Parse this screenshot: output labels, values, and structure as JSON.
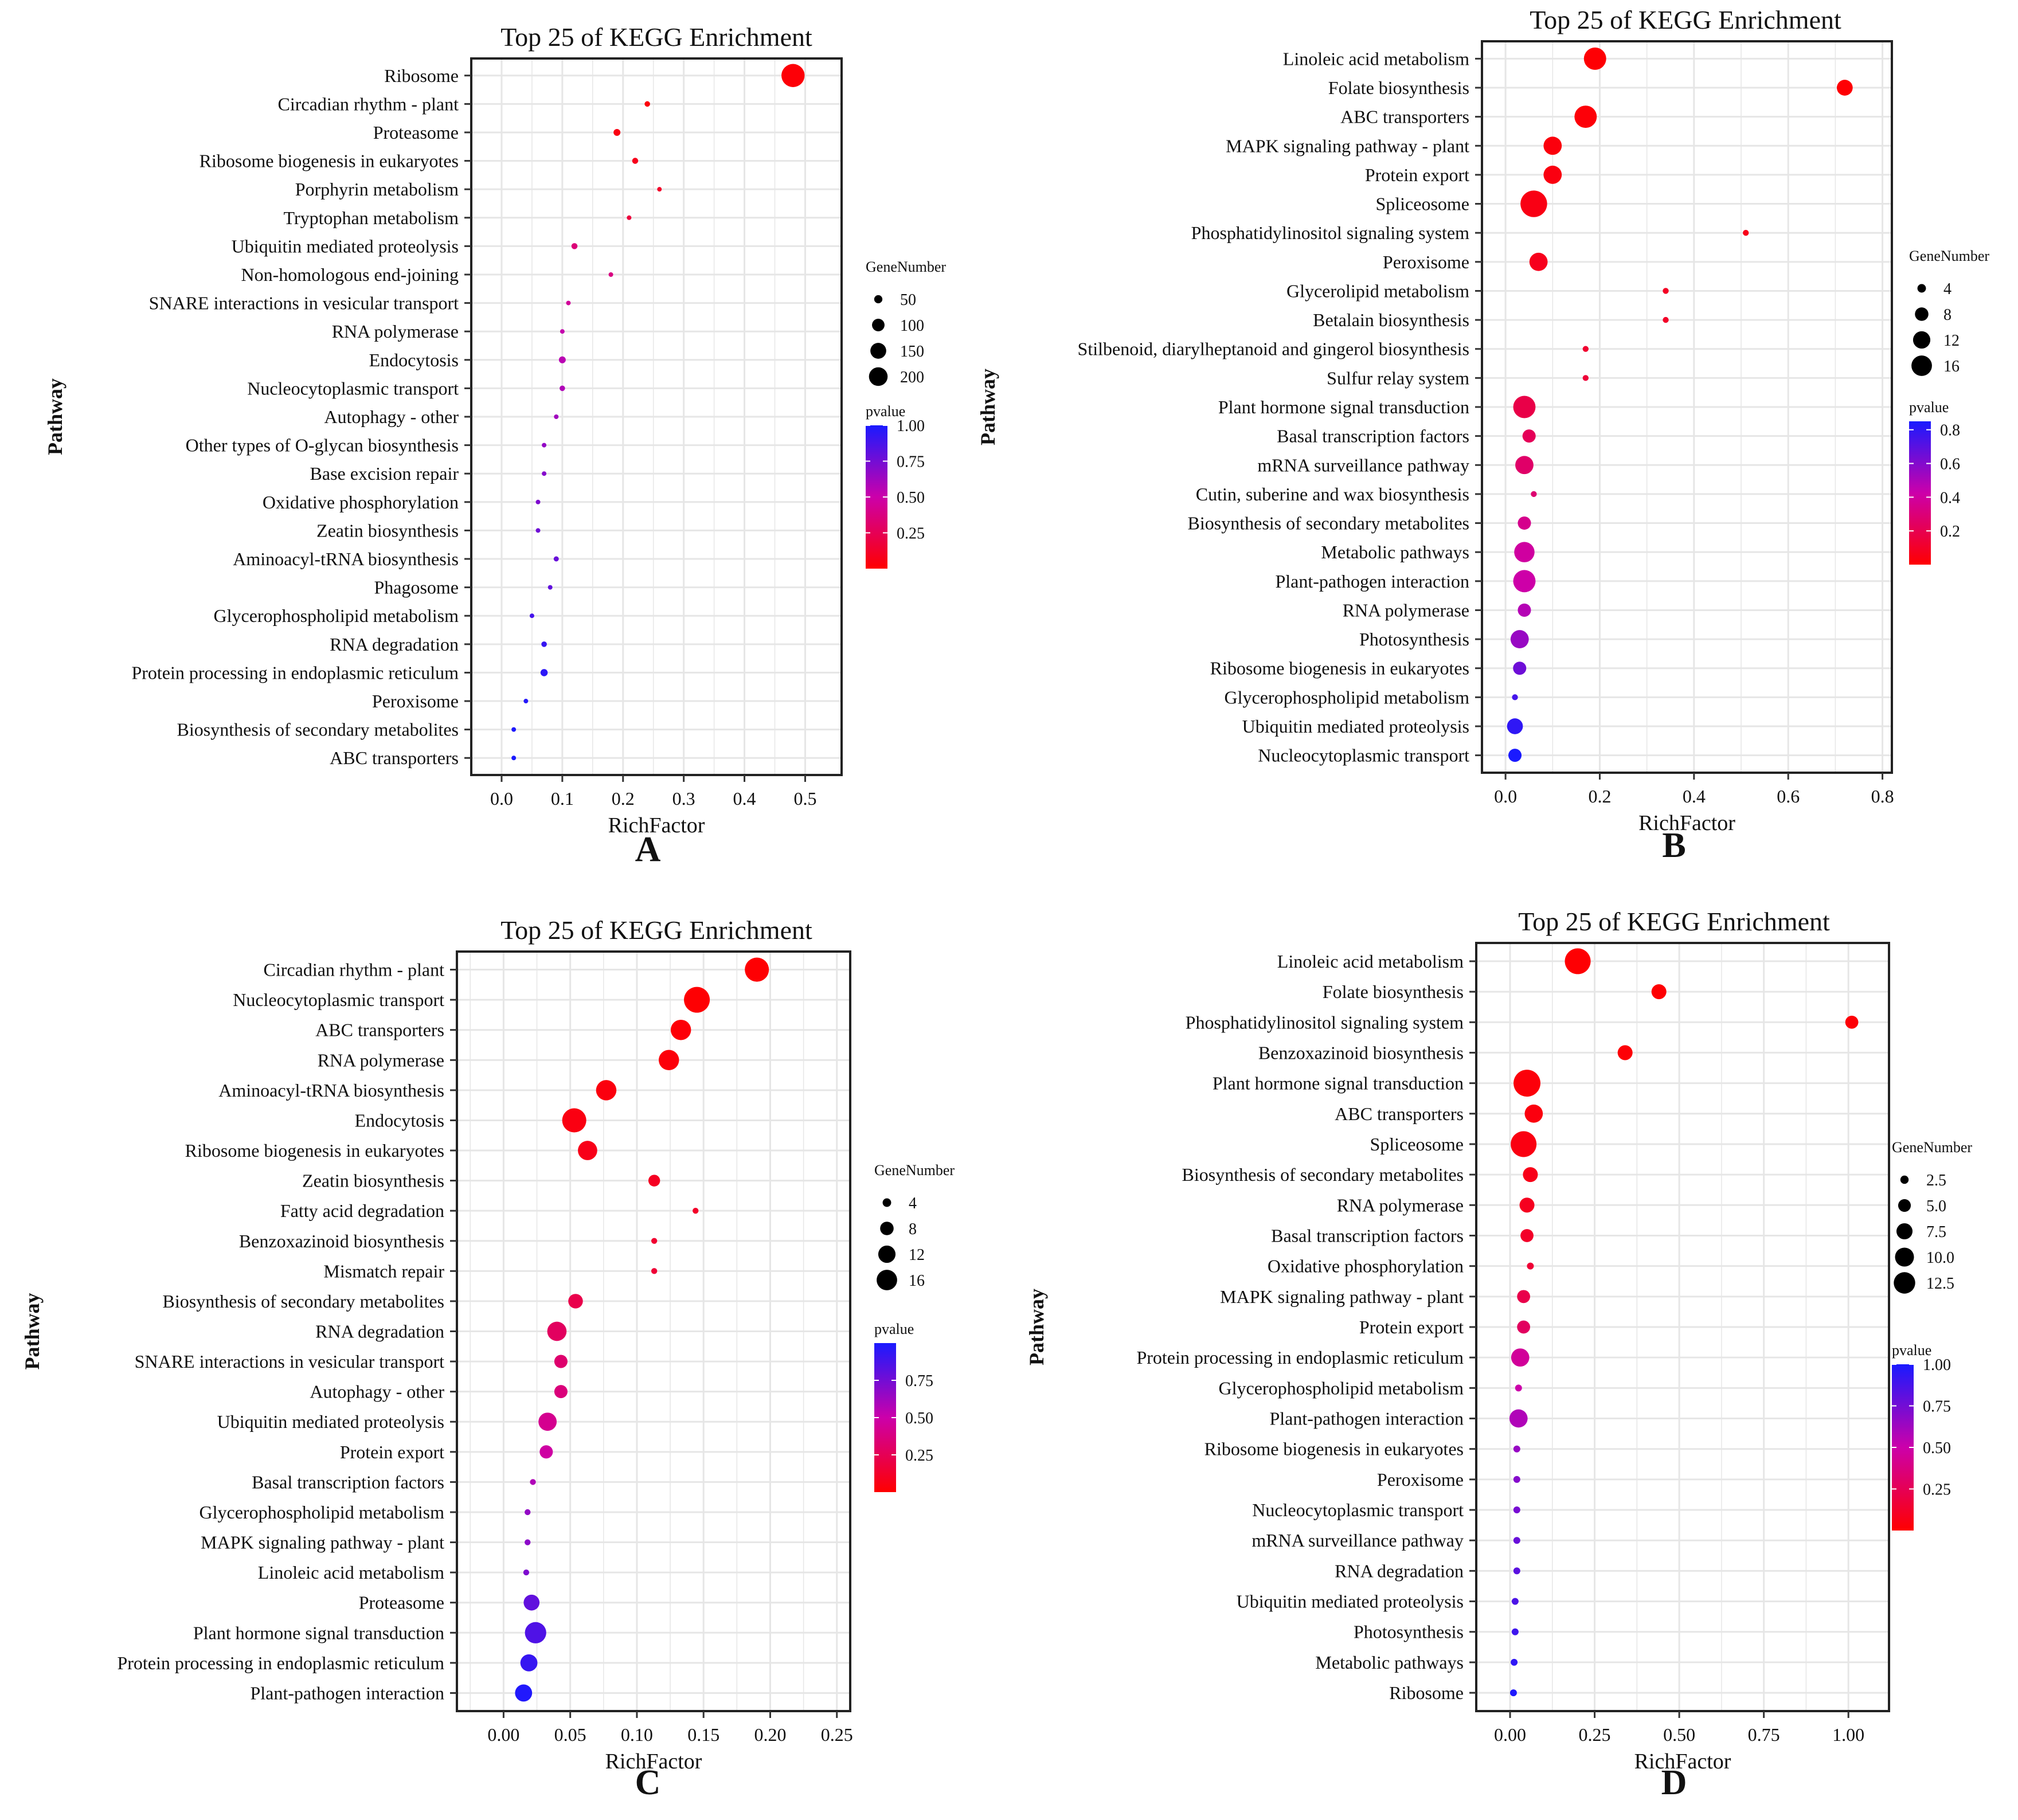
{
  "figure": {
    "panel_labels": [
      "A",
      "B",
      "C",
      "D"
    ]
  },
  "chart_data": [
    {
      "type": "scatter",
      "panel": "A",
      "title": "Top 25 of KEGG Enrichment",
      "xlabel": "RichFactor",
      "ylabel": "Pathway",
      "xlim": [
        -0.05,
        0.56
      ],
      "xticks": [
        0.0,
        0.1,
        0.2,
        0.3,
        0.4,
        0.5
      ],
      "xtick_labels": [
        "0.0",
        "0.1",
        "0.2",
        "0.3",
        "0.4",
        "0.5"
      ],
      "grid": true,
      "size_legend": {
        "title": "GeneNumber",
        "values": [
          50,
          100,
          150,
          200
        ],
        "labels": [
          "50",
          "100",
          "150",
          "200"
        ]
      },
      "color_legend": {
        "title": "pvalue",
        "range": [
          0.0,
          1.0
        ],
        "ticks": [
          0.25,
          0.5,
          0.75,
          1.0
        ],
        "labels": [
          "0.25",
          "0.50",
          "0.75",
          "1.00"
        ]
      },
      "points": [
        {
          "pathway": "Ribosome",
          "rich": 0.48,
          "genes": 220,
          "p": 0.02
        },
        {
          "pathway": "Circadian rhythm - plant",
          "rich": 0.24,
          "genes": 22,
          "p": 0.03
        },
        {
          "pathway": "Proteasome",
          "rich": 0.19,
          "genes": 30,
          "p": 0.05
        },
        {
          "pathway": "Ribosome biogenesis in eukaryotes",
          "rich": 0.22,
          "genes": 25,
          "p": 0.08
        },
        {
          "pathway": "Porphyrin metabolism",
          "rich": 0.26,
          "genes": 5,
          "p": 0.12
        },
        {
          "pathway": "Tryptophan metabolism",
          "rich": 0.21,
          "genes": 5,
          "p": 0.18
        },
        {
          "pathway": "Ubiquitin mediated proteolysis",
          "rich": 0.12,
          "genes": 25,
          "p": 0.35
        },
        {
          "pathway": "Non-homologous end-joining",
          "rich": 0.18,
          "genes": 5,
          "p": 0.38
        },
        {
          "pathway": "SNARE interactions in vesicular transport",
          "rich": 0.11,
          "genes": 10,
          "p": 0.45
        },
        {
          "pathway": "RNA polymerase",
          "rich": 0.1,
          "genes": 12,
          "p": 0.52
        },
        {
          "pathway": "Endocytosis",
          "rich": 0.1,
          "genes": 30,
          "p": 0.55
        },
        {
          "pathway": "Nucleocytoplasmic transport",
          "rich": 0.1,
          "genes": 22,
          "p": 0.58
        },
        {
          "pathway": "Autophagy - other",
          "rich": 0.09,
          "genes": 12,
          "p": 0.62
        },
        {
          "pathway": "Other types of O-glycan biosynthesis",
          "rich": 0.07,
          "genes": 5,
          "p": 0.66
        },
        {
          "pathway": "Base excision repair",
          "rich": 0.07,
          "genes": 6,
          "p": 0.7
        },
        {
          "pathway": "Oxidative phosphorylation",
          "rich": 0.06,
          "genes": 6,
          "p": 0.72
        },
        {
          "pathway": "Zeatin biosynthesis",
          "rich": 0.06,
          "genes": 5,
          "p": 0.76
        },
        {
          "pathway": "Aminoacyl-tRNA biosynthesis",
          "rich": 0.09,
          "genes": 20,
          "p": 0.78
        },
        {
          "pathway": "Phagosome",
          "rich": 0.08,
          "genes": 12,
          "p": 0.8
        },
        {
          "pathway": "Glycerophospholipid metabolism",
          "rich": 0.05,
          "genes": 12,
          "p": 0.88
        },
        {
          "pathway": "RNA degradation",
          "rich": 0.07,
          "genes": 22,
          "p": 0.92
        },
        {
          "pathway": "Protein processing in endoplasmic reticulum",
          "rich": 0.07,
          "genes": 32,
          "p": 0.95
        },
        {
          "pathway": "Peroxisome",
          "rich": 0.04,
          "genes": 12,
          "p": 0.97
        },
        {
          "pathway": "Biosynthesis of secondary metabolites",
          "rich": 0.02,
          "genes": 5,
          "p": 0.99
        },
        {
          "pathway": "ABC transporters",
          "rich": 0.02,
          "genes": 5,
          "p": 1.0
        }
      ]
    },
    {
      "type": "scatter",
      "panel": "B",
      "title": "Top 25 of KEGG Enrichment",
      "xlabel": "RichFactor",
      "ylabel": "Pathway",
      "xlim": [
        -0.05,
        0.82
      ],
      "xticks": [
        0.0,
        0.2,
        0.4,
        0.6,
        0.8
      ],
      "xtick_labels": [
        "0.0",
        "0.2",
        "0.4",
        "0.6",
        "0.8"
      ],
      "grid": true,
      "size_legend": {
        "title": "GeneNumber",
        "values": [
          4,
          8,
          12,
          16
        ],
        "labels": [
          "4",
          "8",
          "12",
          "16"
        ]
      },
      "color_legend": {
        "title": "pvalue",
        "range": [
          0.0,
          0.85
        ],
        "ticks": [
          0.2,
          0.4,
          0.6,
          0.8
        ],
        "labels": [
          "0.2",
          "0.4",
          "0.6",
          "0.8"
        ]
      },
      "points": [
        {
          "pathway": "Linoleic acid metabolism",
          "rich": 0.19,
          "genes": 14,
          "p": 0.01
        },
        {
          "pathway": "Folate biosynthesis",
          "rich": 0.72,
          "genes": 8,
          "p": 0.01
        },
        {
          "pathway": "ABC transporters",
          "rich": 0.17,
          "genes": 14,
          "p": 0.02
        },
        {
          "pathway": "MAPK signaling pathway - plant",
          "rich": 0.1,
          "genes": 10,
          "p": 0.03
        },
        {
          "pathway": "Protein export",
          "rich": 0.1,
          "genes": 10,
          "p": 0.04
        },
        {
          "pathway": "Spliceosome",
          "rich": 0.06,
          "genes": 19,
          "p": 0.05
        },
        {
          "pathway": "Phosphatidylinositol signaling system",
          "rich": 0.51,
          "genes": 2,
          "p": 0.06
        },
        {
          "pathway": "Peroxisome",
          "rich": 0.07,
          "genes": 10,
          "p": 0.07
        },
        {
          "pathway": "Glycerolipid metabolism",
          "rich": 0.34,
          "genes": 2,
          "p": 0.09
        },
        {
          "pathway": "Betalain biosynthesis",
          "rich": 0.34,
          "genes": 2,
          "p": 0.1
        },
        {
          "pathway": "Stilbenoid, diarylheptanoid and gingerol biosynthesis",
          "rich": 0.17,
          "genes": 2,
          "p": 0.12
        },
        {
          "pathway": "Sulfur relay system",
          "rich": 0.17,
          "genes": 2,
          "p": 0.14
        },
        {
          "pathway": "Plant hormone signal transduction",
          "rich": 0.04,
          "genes": 14,
          "p": 0.18
        },
        {
          "pathway": "Basal transcription factors",
          "rich": 0.05,
          "genes": 6,
          "p": 0.22
        },
        {
          "pathway": "mRNA surveillance pathway",
          "rich": 0.04,
          "genes": 10,
          "p": 0.26
        },
        {
          "pathway": "Cutin, suberine and wax biosynthesis",
          "rich": 0.06,
          "genes": 2,
          "p": 0.28
        },
        {
          "pathway": "Biosynthesis of secondary metabolites",
          "rich": 0.04,
          "genes": 6,
          "p": 0.35
        },
        {
          "pathway": "Metabolic pathways",
          "rich": 0.04,
          "genes": 12,
          "p": 0.4
        },
        {
          "pathway": "Plant-pathogen interaction",
          "rich": 0.04,
          "genes": 14,
          "p": 0.42
        },
        {
          "pathway": "RNA polymerase",
          "rich": 0.04,
          "genes": 6,
          "p": 0.48
        },
        {
          "pathway": "Photosynthesis",
          "rich": 0.03,
          "genes": 10,
          "p": 0.55
        },
        {
          "pathway": "Ribosome biogenesis in eukaryotes",
          "rich": 0.03,
          "genes": 6,
          "p": 0.65
        },
        {
          "pathway": "Glycerophospholipid metabolism",
          "rich": 0.02,
          "genes": 2,
          "p": 0.75
        },
        {
          "pathway": "Ubiquitin mediated proteolysis",
          "rich": 0.02,
          "genes": 8,
          "p": 0.8
        },
        {
          "pathway": "Nucleocytoplasmic transport",
          "rich": 0.02,
          "genes": 6,
          "p": 0.85
        }
      ]
    },
    {
      "type": "scatter",
      "panel": "C",
      "title": "Top 25 of KEGG Enrichment",
      "xlabel": "RichFactor",
      "ylabel": "Pathway",
      "xlim": [
        -0.035,
        0.26
      ],
      "xticks": [
        0.0,
        0.05,
        0.1,
        0.15,
        0.2,
        0.25
      ],
      "xtick_labels": [
        "0.00",
        "0.05",
        "0.10",
        "0.15",
        "0.20",
        "0.25"
      ],
      "grid": true,
      "size_legend": {
        "title": "GeneNumber",
        "values": [
          4,
          8,
          12,
          16
        ],
        "labels": [
          "4",
          "8",
          "12",
          "16"
        ]
      },
      "color_legend": {
        "title": "pvalue",
        "range": [
          0.0,
          1.0
        ],
        "ticks": [
          0.25,
          0.5,
          0.75
        ],
        "labels": [
          "0.25",
          "0.50",
          "0.75"
        ]
      },
      "points": [
        {
          "pathway": "Circadian rhythm - plant",
          "rich": 0.19,
          "genes": 16,
          "p": 0.01
        },
        {
          "pathway": "Nucleocytoplasmic transport",
          "rich": 0.145,
          "genes": 18,
          "p": 0.01
        },
        {
          "pathway": "ABC transporters",
          "rich": 0.133,
          "genes": 12,
          "p": 0.02
        },
        {
          "pathway": "RNA polymerase",
          "rich": 0.124,
          "genes": 12,
          "p": 0.03
        },
        {
          "pathway": "Aminoacyl-tRNA biosynthesis",
          "rich": 0.077,
          "genes": 12,
          "p": 0.04
        },
        {
          "pathway": "Endocytosis",
          "rich": 0.053,
          "genes": 16,
          "p": 0.05
        },
        {
          "pathway": "Ribosome biogenesis in eukaryotes",
          "rich": 0.063,
          "genes": 11,
          "p": 0.07
        },
        {
          "pathway": "Zeatin biosynthesis",
          "rich": 0.113,
          "genes": 5,
          "p": 0.1
        },
        {
          "pathway": "Fatty acid degradation",
          "rich": 0.144,
          "genes": 2,
          "p": 0.12
        },
        {
          "pathway": "Benzoxazinoid biosynthesis",
          "rich": 0.113,
          "genes": 2,
          "p": 0.14
        },
        {
          "pathway": "Mismatch repair",
          "rich": 0.113,
          "genes": 2,
          "p": 0.16
        },
        {
          "pathway": "Biosynthesis of secondary metabolites",
          "rich": 0.054,
          "genes": 7,
          "p": 0.22
        },
        {
          "pathway": "RNA degradation",
          "rich": 0.04,
          "genes": 11,
          "p": 0.28
        },
        {
          "pathway": "SNARE interactions in vesicular transport",
          "rich": 0.043,
          "genes": 6,
          "p": 0.32
        },
        {
          "pathway": "Autophagy - other",
          "rich": 0.043,
          "genes": 6,
          "p": 0.36
        },
        {
          "pathway": "Ubiquitin mediated proteolysis",
          "rich": 0.033,
          "genes": 10,
          "p": 0.42
        },
        {
          "pathway": "Protein export",
          "rich": 0.032,
          "genes": 6,
          "p": 0.48
        },
        {
          "pathway": "Basal transcription factors",
          "rich": 0.022,
          "genes": 2,
          "p": 0.58
        },
        {
          "pathway": "Glycerophospholipid metabolism",
          "rich": 0.018,
          "genes": 2,
          "p": 0.66
        },
        {
          "pathway": "MAPK signaling pathway - plant",
          "rich": 0.018,
          "genes": 2,
          "p": 0.68
        },
        {
          "pathway": "Linoleic acid metabolism",
          "rich": 0.017,
          "genes": 2,
          "p": 0.72
        },
        {
          "pathway": "Proteasome",
          "rich": 0.021,
          "genes": 8,
          "p": 0.8
        },
        {
          "pathway": "Plant hormone signal transduction",
          "rich": 0.024,
          "genes": 13,
          "p": 0.85
        },
        {
          "pathway": "Protein processing in endoplasmic reticulum",
          "rich": 0.019,
          "genes": 9,
          "p": 0.92
        },
        {
          "pathway": "Plant-pathogen interaction",
          "rich": 0.015,
          "genes": 9,
          "p": 0.98
        }
      ]
    },
    {
      "type": "scatter",
      "panel": "D",
      "title": "Top 25 of KEGG Enrichment",
      "xlabel": "RichFactor",
      "ylabel": "Pathway",
      "xlim": [
        -0.1,
        1.12
      ],
      "xticks": [
        0.0,
        0.25,
        0.5,
        0.75,
        1.0
      ],
      "xtick_labels": [
        "0.00",
        "0.25",
        "0.50",
        "0.75",
        "1.00"
      ],
      "grid": true,
      "size_legend": {
        "title": "GeneNumber",
        "values": [
          2.5,
          5.0,
          7.5,
          10.0,
          12.5
        ],
        "labels": [
          "2.5",
          "5.0",
          "7.5",
          "10.0",
          "12.5"
        ]
      },
      "color_legend": {
        "title": "pvalue",
        "range": [
          0.0,
          1.0
        ],
        "ticks": [
          0.25,
          0.5,
          0.75,
          1.0
        ],
        "labels": [
          "0.25",
          "0.50",
          "0.75",
          "1.00"
        ]
      },
      "points": [
        {
          "pathway": "Linoleic acid metabolism",
          "rich": 0.2,
          "genes": 13,
          "p": 0.01
        },
        {
          "pathway": "Folate biosynthesis",
          "rich": 0.44,
          "genes": 5,
          "p": 0.01
        },
        {
          "pathway": "Phosphatidylinositol signaling system",
          "rich": 1.01,
          "genes": 4,
          "p": 0.02
        },
        {
          "pathway": "Benzoxazinoid biosynthesis",
          "rich": 0.34,
          "genes": 5,
          "p": 0.02
        },
        {
          "pathway": "Plant hormone signal transduction",
          "rich": 0.05,
          "genes": 14,
          "p": 0.03
        },
        {
          "pathway": "ABC transporters",
          "rich": 0.07,
          "genes": 7,
          "p": 0.04
        },
        {
          "pathway": "Spliceosome",
          "rich": 0.04,
          "genes": 13,
          "p": 0.05
        },
        {
          "pathway": "Biosynthesis of secondary metabolites",
          "rich": 0.06,
          "genes": 5,
          "p": 0.07
        },
        {
          "pathway": "RNA polymerase",
          "rich": 0.05,
          "genes": 5,
          "p": 0.09
        },
        {
          "pathway": "Basal transcription factors",
          "rich": 0.05,
          "genes": 4,
          "p": 0.12
        },
        {
          "pathway": "Oxidative phosphorylation",
          "rich": 0.06,
          "genes": 1.5,
          "p": 0.16
        },
        {
          "pathway": "MAPK signaling pathway - plant",
          "rich": 0.04,
          "genes": 4,
          "p": 0.22
        },
        {
          "pathway": "Protein export",
          "rich": 0.04,
          "genes": 4,
          "p": 0.28
        },
        {
          "pathway": "Protein processing in endoplasmic reticulum",
          "rich": 0.03,
          "genes": 7,
          "p": 0.45
        },
        {
          "pathway": "Glycerophospholipid metabolism",
          "rich": 0.025,
          "genes": 1.5,
          "p": 0.5
        },
        {
          "pathway": "Plant-pathogen interaction",
          "rich": 0.025,
          "genes": 7,
          "p": 0.58
        },
        {
          "pathway": "Ribosome biogenesis in eukaryotes",
          "rich": 0.02,
          "genes": 1.5,
          "p": 0.65
        },
        {
          "pathway": "Peroxisome",
          "rich": 0.02,
          "genes": 1.5,
          "p": 0.7
        },
        {
          "pathway": "Nucleocytoplasmic transport",
          "rich": 0.02,
          "genes": 1.5,
          "p": 0.74
        },
        {
          "pathway": "mRNA surveillance pathway",
          "rich": 0.02,
          "genes": 1.5,
          "p": 0.78
        },
        {
          "pathway": "RNA degradation",
          "rich": 0.02,
          "genes": 1.5,
          "p": 0.82
        },
        {
          "pathway": "Ubiquitin mediated proteolysis",
          "rich": 0.015,
          "genes": 1.5,
          "p": 0.86
        },
        {
          "pathway": "Photosynthesis",
          "rich": 0.015,
          "genes": 1.5,
          "p": 0.9
        },
        {
          "pathway": "Metabolic pathways",
          "rich": 0.012,
          "genes": 1.5,
          "p": 0.94
        },
        {
          "pathway": "Ribosome",
          "rich": 0.01,
          "genes": 1.5,
          "p": 0.99
        }
      ]
    }
  ]
}
